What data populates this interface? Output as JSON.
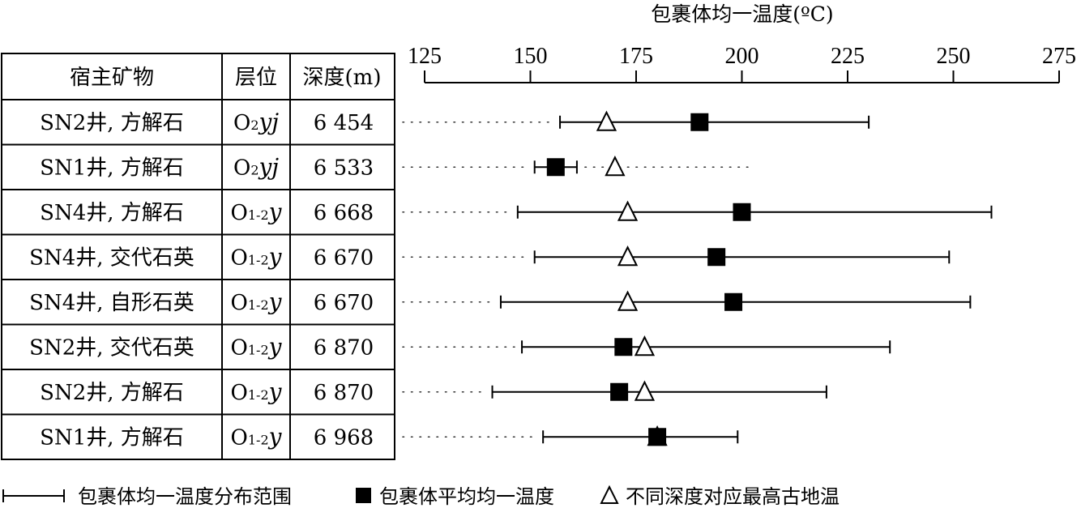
{
  "chart_data": {
    "type": "range-dot",
    "title": "包裹体均一温度(ºC)",
    "xlim": [
      125,
      275
    ],
    "xticks": [
      125,
      150,
      175,
      200,
      225,
      250,
      275
    ],
    "table_headers": [
      "宿主矿物",
      "层位",
      "深度(m)"
    ],
    "rows": [
      {
        "mineral": "SN2井, 方解石",
        "horizon_base": "O",
        "horizon_sub": "2",
        "horizon_suffix": "yj",
        "depth": "6 454",
        "range": [
          157,
          230
        ],
        "mean": 190,
        "paleo_temp": 168,
        "paleo_line_end": null
      },
      {
        "mineral": "SN1井, 方解石",
        "horizon_base": "O",
        "horizon_sub": "2",
        "horizon_suffix": "yj",
        "depth": "6 533",
        "range": [
          151,
          161
        ],
        "mean": 156,
        "paleo_temp": 170,
        "paleo_line_end": 203
      },
      {
        "mineral": "SN4井, 方解石",
        "horizon_base": "O",
        "horizon_sub": "1-2",
        "horizon_suffix": "y",
        "depth": "6 668",
        "range": [
          147,
          259
        ],
        "mean": 200,
        "paleo_temp": 173,
        "paleo_line_end": null
      },
      {
        "mineral": "SN4井, 交代石英",
        "horizon_base": "O",
        "horizon_sub": "1-2",
        "horizon_suffix": "y",
        "depth": "6 670",
        "range": [
          151,
          249
        ],
        "mean": 194,
        "paleo_temp": 173,
        "paleo_line_end": null
      },
      {
        "mineral": "SN4井, 自形石英",
        "horizon_base": "O",
        "horizon_sub": "1-2",
        "horizon_suffix": "y",
        "depth": "6 670",
        "range": [
          143,
          254
        ],
        "mean": 198,
        "paleo_temp": 173,
        "paleo_line_end": null
      },
      {
        "mineral": "SN2井, 交代石英",
        "horizon_base": "O",
        "horizon_sub": "1-2",
        "horizon_suffix": "y",
        "depth": "6 870",
        "range": [
          148,
          235
        ],
        "mean": 172,
        "paleo_temp": 177,
        "paleo_line_end": null
      },
      {
        "mineral": "SN2井, 方解石",
        "horizon_base": "O",
        "horizon_sub": "1-2",
        "horizon_suffix": "y",
        "depth": "6 870",
        "range": [
          141,
          220
        ],
        "mean": 171,
        "paleo_temp": 177,
        "paleo_line_end": null
      },
      {
        "mineral": "SN1井, 方解石",
        "horizon_base": "O",
        "horizon_sub": "1-2",
        "horizon_suffix": "y",
        "depth": "6 968",
        "range": [
          153,
          199
        ],
        "mean": 180,
        "paleo_temp": 180,
        "paleo_line_end": null
      }
    ],
    "legend": {
      "range_label": "包裹体均一温度分布范围",
      "mean_label": "包裹体平均均一温度",
      "paleo_label": "不同深度对应最高古地温"
    },
    "colors": {
      "ink": "#000000",
      "dots": "#333333"
    }
  }
}
